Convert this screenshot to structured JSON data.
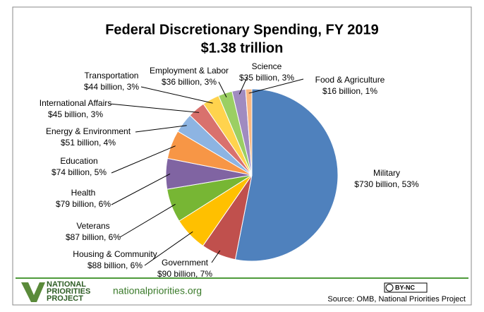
{
  "chart_data": {
    "type": "pie",
    "title": "Federal Discretionary Spending, FY 2019",
    "subtitle": "$1.38 trillion",
    "categories": [
      "Military",
      "Government",
      "Housing & Community",
      "Veterans",
      "Health",
      "Education",
      "Energy & Environment",
      "International Affairs",
      "Transportation",
      "Employment & Labor",
      "Science",
      "Food & Agriculture"
    ],
    "values": [
      730,
      90,
      88,
      87,
      79,
      74,
      51,
      45,
      44,
      36,
      35,
      16
    ],
    "value_labels": [
      "$730 billion, 53%",
      "$90 billion, 7%",
      "$88 billion, 6%",
      "$87 billion, 6%",
      "$79 billion, 6%",
      "$74 billion, 5%",
      "$51 billion, 4%",
      "$45 billion, 3%",
      "$44 billion, 3%",
      "$36 billion, 3%",
      "$35 billion, 3%",
      "$16 billion, 1%"
    ],
    "colors": [
      "#4f81bd",
      "#c0504d",
      "#ffc000",
      "#77b634",
      "#8064a2",
      "#f79646",
      "#8db4e2",
      "#d9716d",
      "#ffd34d",
      "#9bcf63",
      "#a08bc0",
      "#fbb880"
    ]
  },
  "footer": {
    "logo": [
      "NATIONAL",
      "PRIORITIES",
      "PROJECT"
    ],
    "url": "nationalpriorities.org",
    "license": "BY-NC",
    "source": "Source: OMB, National Priorities Project"
  }
}
